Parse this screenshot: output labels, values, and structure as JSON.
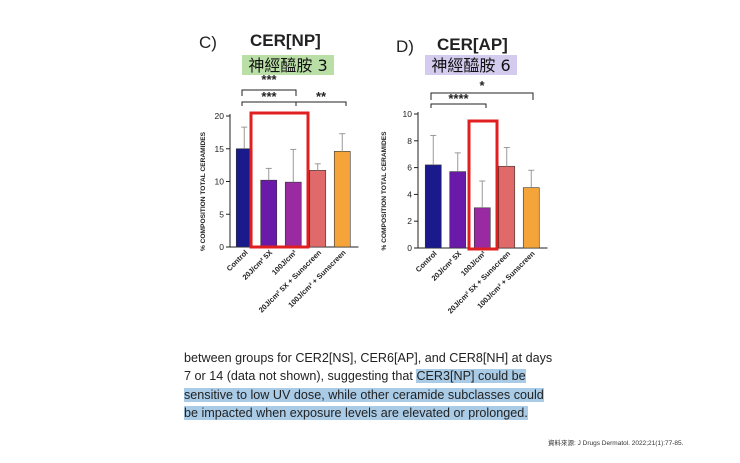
{
  "colors": {
    "control": "#1a1a8c",
    "uv_5x": "#6a1aa8",
    "uv_100": "#9a2aa2",
    "uv_5x_sunscreen": "#e06a6a",
    "uv_100_sunscreen": "#f5a43a",
    "highlight_box": "#e02020",
    "title_np_bg": "#b9dfa6",
    "title_ap_bg": "#d4ccee",
    "paragraph_highlight": "#a9cbe6"
  },
  "chart_data": [
    {
      "type": "bar",
      "panel_label": "C)",
      "title": "CER[NP]",
      "subtitle": "神經醯胺 3",
      "ylabel": "% COMPOSITION TOTAL CERAMIDES",
      "ylim": [
        0,
        20
      ],
      "yticks": [
        "0",
        "5",
        "10",
        "15",
        "20"
      ],
      "categories": [
        "Control",
        "20J/cm² 5X",
        "100J/cm²",
        "20J/cm² 5X + Sunscreen",
        "100J/cm² + Sunscreen"
      ],
      "values": [
        15.0,
        10.2,
        9.9,
        11.7,
        14.6
      ],
      "errors": [
        3.3,
        1.8,
        5.0,
        1.0,
        2.7
      ],
      "significance": [
        {
          "from": 0,
          "to": 2,
          "label": "***"
        },
        {
          "from": 0,
          "to": 2,
          "label": "***"
        },
        {
          "from": 2,
          "to": 4,
          "label": "**"
        }
      ],
      "highlight": [
        1,
        2
      ]
    },
    {
      "type": "bar",
      "panel_label": "D)",
      "title": "CER[AP]",
      "subtitle": "神經醯胺 6",
      "ylabel": "% COMPOSITION TOTAL CERAMIDES",
      "ylim": [
        0,
        10
      ],
      "yticks": [
        "0",
        "2",
        "4",
        "6",
        "8",
        "10"
      ],
      "categories": [
        "Control",
        "20J/cm² 5X",
        "100J/cm²",
        "20J/cm² 5X + Sunscreen",
        "100J/cm² + Sunscreen"
      ],
      "values": [
        6.2,
        5.7,
        3.0,
        6.1,
        4.5
      ],
      "errors": [
        2.2,
        1.4,
        2.0,
        1.4,
        1.3
      ],
      "significance": [
        {
          "from": 0,
          "to": 2,
          "label": "****"
        },
        {
          "from": 0,
          "to": 4,
          "label": "*"
        }
      ],
      "highlight": [
        2
      ]
    }
  ],
  "paragraph": {
    "line1": "between groups for CER2[NS], CER6[AP], and CER8[NH] at days",
    "line2_plain": "7 or 14 (data not shown), suggesting that ",
    "line2_hl": "CER3[NP] could be",
    "line3": "sensitive to low UV dose, while other ceramide subclasses could",
    "line4": "be impacted when exposure levels are elevated or prolonged."
  },
  "source": "資料來源: J Drugs Dermatol. 2022;21(1):77-85."
}
